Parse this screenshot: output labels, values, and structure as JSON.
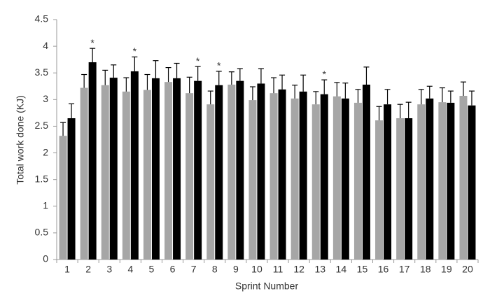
{
  "chart_data": {
    "type": "bar",
    "x_label": "Sprint Number",
    "y_label": "Total work done (KJ)",
    "categories": [
      "1",
      "2",
      "3",
      "4",
      "5",
      "6",
      "7",
      "8",
      "9",
      "10",
      "11",
      "12",
      "13",
      "14",
      "15",
      "16",
      "17",
      "18",
      "19",
      "20"
    ],
    "series": [
      {
        "color": "#a6a6a6",
        "values": [
          2.32,
          3.22,
          3.27,
          3.15,
          3.18,
          3.33,
          3.12,
          2.91,
          3.28,
          2.99,
          3.12,
          3.02,
          2.91,
          3.06,
          2.94,
          2.61,
          2.65,
          2.91,
          2.95,
          3.07
        ],
        "errors": [
          0.25,
          0.25,
          0.28,
          0.26,
          0.29,
          0.27,
          0.3,
          0.25,
          0.24,
          0.25,
          0.29,
          0.25,
          0.24,
          0.26,
          0.25,
          0.26,
          0.26,
          0.28,
          0.27,
          0.26
        ]
      },
      {
        "color": "#000000",
        "values": [
          2.65,
          3.7,
          3.41,
          3.53,
          3.4,
          3.4,
          3.35,
          3.27,
          3.35,
          3.3,
          3.19,
          3.15,
          3.1,
          3.02,
          3.28,
          2.91,
          2.65,
          3.02,
          2.94,
          2.89
        ],
        "errors": [
          0.27,
          0.26,
          0.24,
          0.27,
          0.33,
          0.28,
          0.27,
          0.26,
          0.23,
          0.28,
          0.27,
          0.31,
          0.27,
          0.29,
          0.33,
          0.28,
          0.3,
          0.23,
          0.22,
          0.27
        ],
        "markers": [
          null,
          "*",
          null,
          "*",
          null,
          null,
          "*",
          "*",
          null,
          null,
          null,
          null,
          "*",
          null,
          null,
          null,
          null,
          null,
          null,
          null
        ]
      }
    ],
    "ylim": [
      0,
      4.5
    ],
    "yticks": [
      0,
      0.5,
      1,
      1.5,
      2,
      2.5,
      3,
      3.5,
      4,
      4.5
    ],
    "grid": false
  }
}
